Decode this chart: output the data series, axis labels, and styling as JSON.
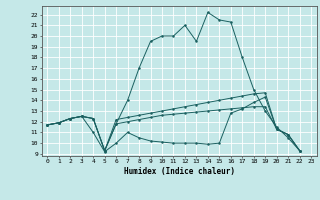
{
  "title": "",
  "xlabel": "Humidex (Indice chaleur)",
  "bg_color": "#c5e8e8",
  "line_color": "#1a6060",
  "grid_color": "#ffffff",
  "xlim": [
    -0.5,
    23.5
  ],
  "ylim": [
    8.8,
    22.8
  ],
  "xticks": [
    0,
    1,
    2,
    3,
    4,
    5,
    6,
    7,
    8,
    9,
    10,
    11,
    12,
    13,
    14,
    15,
    16,
    17,
    18,
    19,
    20,
    21,
    22,
    23
  ],
  "yticks": [
    9,
    10,
    11,
    12,
    13,
    14,
    15,
    16,
    17,
    18,
    19,
    20,
    21,
    22
  ],
  "line1_x": [
    0,
    1,
    2,
    3,
    4,
    5,
    6,
    7,
    8,
    9,
    10,
    11,
    12,
    13,
    14,
    15,
    16,
    17,
    18,
    19,
    20,
    21,
    22
  ],
  "line1_y": [
    11.7,
    11.9,
    12.3,
    12.5,
    12.3,
    9.3,
    11.8,
    14.0,
    17.0,
    19.5,
    20.0,
    20.0,
    21.0,
    19.5,
    22.2,
    21.5,
    21.3,
    18.0,
    15.0,
    13.0,
    11.5,
    10.5,
    9.3
  ],
  "line2_x": [
    0,
    1,
    2,
    3,
    4,
    5,
    6,
    7,
    8,
    9,
    10,
    11,
    12,
    13,
    14,
    15,
    16,
    17,
    18,
    19,
    20,
    21,
    22
  ],
  "line2_y": [
    11.7,
    11.9,
    12.3,
    12.5,
    11.0,
    9.2,
    10.0,
    11.0,
    10.5,
    10.2,
    10.1,
    10.0,
    10.0,
    10.0,
    9.9,
    10.0,
    12.8,
    13.2,
    13.8,
    14.3,
    11.3,
    10.8,
    9.3
  ],
  "line3_x": [
    0,
    1,
    2,
    3,
    4,
    5,
    6,
    7,
    8,
    9,
    10,
    11,
    12,
    13,
    14,
    15,
    16,
    17,
    18,
    19,
    20,
    21,
    22
  ],
  "line3_y": [
    11.7,
    11.9,
    12.3,
    12.5,
    12.3,
    9.3,
    12.2,
    12.4,
    12.6,
    12.8,
    13.0,
    13.2,
    13.4,
    13.6,
    13.8,
    14.0,
    14.2,
    14.4,
    14.6,
    14.7,
    11.3,
    10.8,
    9.3
  ],
  "line4_x": [
    0,
    1,
    2,
    3,
    4,
    5,
    6,
    7,
    8,
    9,
    10,
    11,
    12,
    13,
    14,
    15,
    16,
    17,
    18,
    19,
    20,
    21,
    22
  ],
  "line4_y": [
    11.7,
    11.9,
    12.3,
    12.5,
    12.3,
    9.3,
    11.8,
    12.0,
    12.2,
    12.4,
    12.6,
    12.7,
    12.8,
    12.9,
    13.0,
    13.1,
    13.2,
    13.3,
    13.4,
    13.4,
    11.3,
    10.8,
    9.3
  ]
}
